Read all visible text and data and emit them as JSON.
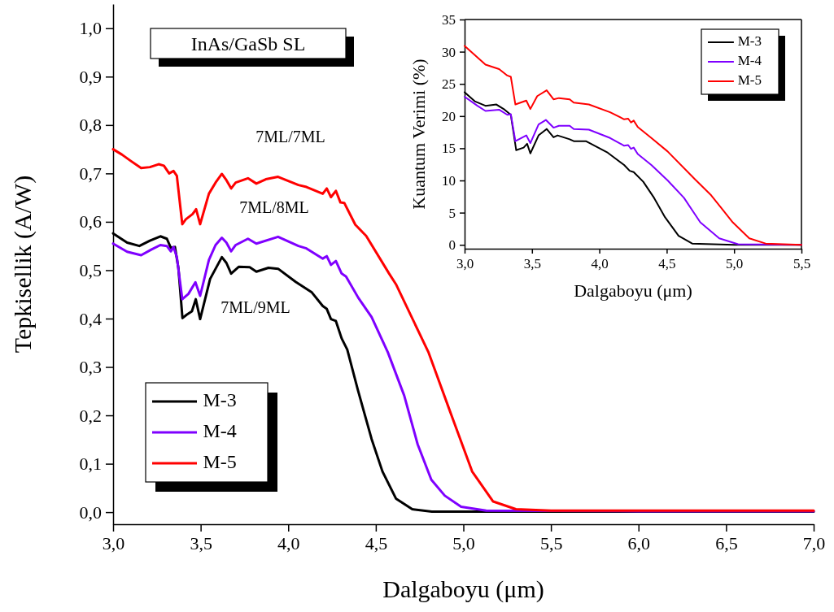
{
  "chart_data": [
    {
      "type": "line",
      "xlabel": "Dalgaboyu (μm)",
      "ylabel": "Tepkisellik (A/W)",
      "xlim": [
        3,
        7
      ],
      "ylim": [
        -0.025,
        1.05
      ],
      "xticks": [
        {
          "value": 3,
          "label": "3,0"
        },
        {
          "value": 3.5,
          "label": "3,5"
        },
        {
          "value": 4,
          "label": "4,0"
        },
        {
          "value": 4.5,
          "label": "4,5"
        },
        {
          "value": 5,
          "label": "5,0"
        },
        {
          "value": 5.5,
          "label": "5,5"
        },
        {
          "value": 6,
          "label": "6,0"
        },
        {
          "value": 6.5,
          "label": "6,5"
        },
        {
          "value": 7,
          "label": "7,0"
        }
      ],
      "yticks": [
        {
          "value": 0,
          "label": "0,0"
        },
        {
          "value": 0.1,
          "label": "0,1"
        },
        {
          "value": 0.2,
          "label": "0,2"
        },
        {
          "value": 0.3,
          "label": "0,3"
        },
        {
          "value": 0.4,
          "label": "0,4"
        },
        {
          "value": 0.5,
          "label": "0,5"
        },
        {
          "value": 0.6,
          "label": "0,6"
        },
        {
          "value": 0.7,
          "label": "0,7"
        },
        {
          "value": 0.8,
          "label": "0,8"
        },
        {
          "value": 0.9,
          "label": "0,9"
        },
        {
          "value": 1,
          "label": "1,0"
        }
      ],
      "legend": "bottom left",
      "grid": false,
      "marker": "none",
      "line_style": "solid",
      "annotations": [
        "InAs/GaSb SL",
        "7ML/7ML",
        "7ML/8ML",
        "7ML/9ML"
      ],
      "series": [
        {
          "name": "M-3",
          "color": "#000000",
          "x": [
            3.0,
            3.08,
            3.15,
            3.21,
            3.27,
            3.307,
            3.33,
            3.353,
            3.373,
            3.396,
            3.42,
            3.45,
            3.472,
            3.497,
            3.554,
            3.621,
            3.647,
            3.674,
            3.717,
            3.78,
            3.818,
            3.887,
            3.942,
            4.042,
            4.135,
            4.197,
            4.22,
            4.244,
            4.272,
            4.305,
            4.337,
            4.398,
            4.476,
            4.538,
            4.615,
            4.708,
            4.82,
            5.0,
            6.0,
            7.0
          ],
          "values": [
            0.576,
            0.557,
            0.55,
            0.561,
            0.57,
            0.565,
            0.546,
            0.548,
            0.504,
            0.401,
            0.408,
            0.415,
            0.44,
            0.399,
            0.482,
            0.527,
            0.515,
            0.493,
            0.507,
            0.506,
            0.497,
            0.505,
            0.503,
            0.476,
            0.454,
            0.426,
            0.42,
            0.399,
            0.395,
            0.359,
            0.336,
            0.252,
            0.151,
            0.084,
            0.028,
            0.006,
            0.001,
            0.001,
            0.001,
            0.001
          ]
        },
        {
          "name": "M-4",
          "color": "#7f00ff",
          "x": [
            3.0,
            3.08,
            3.16,
            3.22,
            3.27,
            3.307,
            3.33,
            3.345,
            3.364,
            3.395,
            3.43,
            3.47,
            3.497,
            3.547,
            3.585,
            3.621,
            3.647,
            3.674,
            3.7,
            3.77,
            3.818,
            3.942,
            4.058,
            4.104,
            4.197,
            4.22,
            4.244,
            4.272,
            4.305,
            4.33,
            4.4,
            4.476,
            4.569,
            4.662,
            4.739,
            4.817,
            4.894,
            4.987,
            5.13,
            6.0,
            7.0
          ],
          "values": [
            0.555,
            0.538,
            0.531,
            0.543,
            0.552,
            0.55,
            0.539,
            0.548,
            0.527,
            0.44,
            0.451,
            0.475,
            0.447,
            0.521,
            0.552,
            0.567,
            0.557,
            0.539,
            0.552,
            0.565,
            0.555,
            0.569,
            0.55,
            0.545,
            0.524,
            0.529,
            0.511,
            0.519,
            0.493,
            0.487,
            0.443,
            0.403,
            0.33,
            0.241,
            0.14,
            0.067,
            0.034,
            0.011,
            0.003,
            0.002,
            0.002
          ]
        },
        {
          "name": "M-5",
          "color": "#ff0000",
          "x": [
            3.0,
            3.05,
            3.1,
            3.16,
            3.21,
            3.26,
            3.29,
            3.32,
            3.345,
            3.364,
            3.395,
            3.415,
            3.454,
            3.474,
            3.497,
            3.547,
            3.585,
            3.621,
            3.647,
            3.674,
            3.7,
            3.77,
            3.818,
            3.872,
            3.942,
            4.058,
            4.104,
            4.197,
            4.22,
            4.244,
            4.272,
            4.298,
            4.32,
            4.383,
            4.445,
            4.576,
            4.615,
            4.8,
            4.925,
            5.05,
            5.17,
            5.3,
            5.5,
            6.0,
            7.0
          ],
          "values": [
            0.75,
            0.739,
            0.726,
            0.711,
            0.713,
            0.719,
            0.716,
            0.7,
            0.705,
            0.695,
            0.595,
            0.605,
            0.616,
            0.626,
            0.595,
            0.658,
            0.681,
            0.699,
            0.686,
            0.669,
            0.681,
            0.69,
            0.679,
            0.688,
            0.693,
            0.676,
            0.672,
            0.658,
            0.669,
            0.651,
            0.664,
            0.64,
            0.639,
            0.594,
            0.571,
            0.493,
            0.471,
            0.331,
            0.207,
            0.084,
            0.022,
            0.006,
            0.003,
            0.003,
            0.003
          ]
        }
      ]
    },
    {
      "type": "line",
      "xlabel": "Dalgaboyu (μm)",
      "ylabel": "Kuantum Verimi (%)",
      "xlim": [
        3,
        5.5
      ],
      "ylim": [
        -0.6,
        35
      ],
      "xticks": [
        {
          "value": 3,
          "label": "3,0"
        },
        {
          "value": 3.5,
          "label": "3,5"
        },
        {
          "value": 4,
          "label": "4,0"
        },
        {
          "value": 4.5,
          "label": "4,5"
        },
        {
          "value": 5,
          "label": "5,0"
        },
        {
          "value": 5.5,
          "label": "5,5"
        }
      ],
      "yticks": [
        0,
        5,
        10,
        15,
        20,
        25,
        30,
        35
      ],
      "legend": "top right",
      "grid": false,
      "marker": "none",
      "line_style": "solid",
      "series": [
        {
          "name": "M-3",
          "color": "#000000",
          "x": [
            3.0,
            3.075,
            3.155,
            3.236,
            3.297,
            3.343,
            3.383,
            3.438,
            3.464,
            3.488,
            3.549,
            3.609,
            3.66,
            3.69,
            3.78,
            3.81,
            3.9,
            4.063,
            4.184,
            4.225,
            4.255,
            4.326,
            4.406,
            4.487,
            4.588,
            4.689,
            5.0,
            5.5
          ],
          "values": [
            23.7,
            22.3,
            21.6,
            21.8,
            21.0,
            20.2,
            14.7,
            15.1,
            15.7,
            14.2,
            17.0,
            18.0,
            16.7,
            17.0,
            16.4,
            16.1,
            16.1,
            14.3,
            12.4,
            11.5,
            11.3,
            9.8,
            7.3,
            4.3,
            1.4,
            0.2,
            0,
            0
          ]
        },
        {
          "name": "M-4",
          "color": "#7f00ff",
          "x": [
            3.0,
            3.095,
            3.155,
            3.256,
            3.317,
            3.343,
            3.377,
            3.458,
            3.488,
            3.549,
            3.603,
            3.66,
            3.7,
            3.78,
            3.81,
            3.922,
            4.08,
            4.184,
            4.214,
            4.235,
            4.255,
            4.285,
            4.386,
            4.507,
            4.628,
            4.749,
            4.89,
            5.03,
            5.5
          ],
          "values": [
            23.0,
            21.6,
            20.8,
            21.0,
            20.2,
            20.3,
            16.1,
            17.0,
            15.8,
            18.7,
            19.4,
            18.2,
            18.5,
            18.5,
            18.0,
            17.9,
            16.6,
            15.4,
            15.5,
            14.9,
            15.1,
            14.1,
            12.4,
            10.0,
            7.3,
            3.5,
            1.0,
            0.1,
            0
          ]
        },
        {
          "name": "M-5",
          "color": "#ff0000",
          "x": [
            3.0,
            3.054,
            3.155,
            3.256,
            3.317,
            3.343,
            3.377,
            3.458,
            3.488,
            3.539,
            3.609,
            3.66,
            3.7,
            3.78,
            3.81,
            3.922,
            4.08,
            4.184,
            4.214,
            4.235,
            4.255,
            4.285,
            4.386,
            4.507,
            4.709,
            4.83,
            4.99,
            5.113,
            5.234,
            5.5
          ],
          "values": [
            30.9,
            29.9,
            28.0,
            27.3,
            26.3,
            26.1,
            21.8,
            22.4,
            21.1,
            23.1,
            24.0,
            22.6,
            22.8,
            22.6,
            22.1,
            21.8,
            20.6,
            19.5,
            19.6,
            19.0,
            19.3,
            18.3,
            16.6,
            14.5,
            10.2,
            7.7,
            3.5,
            1.0,
            0.2,
            0
          ]
        }
      ]
    }
  ]
}
